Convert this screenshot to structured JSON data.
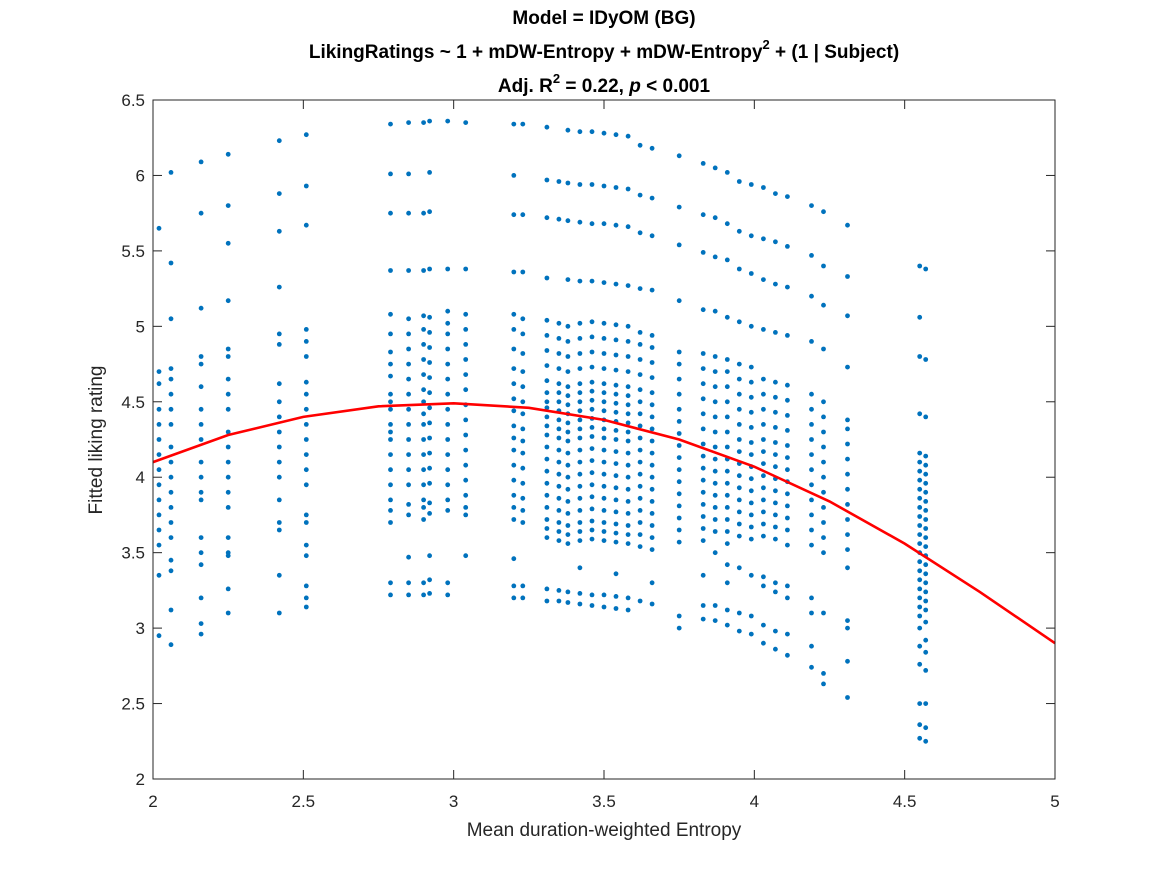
{
  "chart_data": {
    "type": "scatter",
    "title_lines": [
      "Model = IDyOM (BG)",
      "LikingRatings ~ 1 + mDW-Entropy + mDW-Entropy",
      "Adj. R",
      "2",
      " = 0.22, ",
      "p",
      " < 0.001"
    ],
    "title_line2_sup": "2",
    "title_line2_tail": " + (1 | Subject)",
    "xlabel": "Mean duration-weighted Entropy",
    "ylabel": "Fitted liking rating",
    "xlim": [
      2,
      5
    ],
    "ylim": [
      2,
      6.5
    ],
    "x_ticks": [
      2,
      2.5,
      3,
      3.5,
      4,
      4.5,
      5
    ],
    "x_tick_labels": [
      "2",
      "2.5",
      "3",
      "3.5",
      "4",
      "4.5",
      "5"
    ],
    "y_ticks": [
      2,
      2.5,
      3,
      3.5,
      4,
      4.5,
      5,
      5.5,
      6,
      6.5
    ],
    "y_tick_labels": [
      "2",
      "2.5",
      "3",
      "3.5",
      "4",
      "4.5",
      "5",
      "5.5",
      "6",
      "6.5"
    ],
    "grid": false,
    "scatter_color": "#0072BD",
    "fit_color": "#FF0000",
    "fit_curve": {
      "x": [
        2.0,
        2.25,
        2.5,
        2.75,
        3.0,
        3.25,
        3.5,
        3.75,
        4.0,
        4.25,
        4.5,
        4.75,
        5.0
      ],
      "y": [
        4.1,
        4.28,
        4.4,
        4.47,
        4.49,
        4.46,
        4.38,
        4.25,
        4.07,
        3.84,
        3.56,
        3.24,
        2.9
      ]
    },
    "columns": [
      {
        "x": 2.02,
        "y": [
          5.65,
          4.7,
          4.62,
          4.45,
          4.35,
          4.25,
          4.15,
          4.05,
          3.95,
          3.85,
          3.75,
          3.65,
          3.55,
          3.35,
          2.95
        ]
      },
      {
        "x": 2.06,
        "y": [
          6.02,
          5.42,
          5.05,
          4.72,
          4.65,
          4.55,
          4.45,
          4.35,
          4.2,
          4.1,
          4.0,
          3.9,
          3.8,
          3.7,
          3.6,
          3.45,
          3.38,
          3.12,
          2.89
        ]
      },
      {
        "x": 2.16,
        "y": [
          6.09,
          5.75,
          5.12,
          4.8,
          4.75,
          4.6,
          4.45,
          4.35,
          4.25,
          4.1,
          4.0,
          3.9,
          3.85,
          3.6,
          3.5,
          3.42,
          3.2,
          3.03,
          2.96
        ]
      },
      {
        "x": 2.25,
        "y": [
          6.14,
          5.8,
          5.55,
          5.17,
          4.85,
          4.8,
          4.65,
          4.55,
          4.45,
          4.3,
          4.2,
          4.1,
          4.0,
          3.9,
          3.8,
          3.6,
          3.5,
          3.48,
          3.26,
          3.1
        ]
      },
      {
        "x": 2.42,
        "y": [
          6.23,
          5.88,
          5.63,
          5.26,
          4.95,
          4.88,
          4.62,
          4.5,
          4.4,
          4.3,
          4.2,
          4.1,
          4.0,
          3.85,
          3.7,
          3.65,
          3.35,
          3.1
        ]
      },
      {
        "x": 2.51,
        "y": [
          6.27,
          5.93,
          5.67,
          4.98,
          4.9,
          4.8,
          4.63,
          4.55,
          4.45,
          4.35,
          4.25,
          4.15,
          4.05,
          3.95,
          3.75,
          3.7,
          3.55,
          3.48,
          3.28,
          3.2,
          3.14
        ]
      },
      {
        "x": 2.79,
        "y": [
          6.34,
          6.01,
          5.75,
          5.37,
          5.08,
          4.95,
          4.83,
          4.75,
          4.67,
          4.55,
          4.5,
          4.45,
          4.35,
          4.3,
          4.25,
          4.15,
          4.05,
          3.95,
          3.85,
          3.78,
          3.7,
          3.3,
          3.22
        ]
      },
      {
        "x": 2.85,
        "y": [
          6.35,
          6.01,
          5.75,
          5.37,
          5.05,
          4.95,
          4.85,
          4.75,
          4.65,
          4.55,
          4.45,
          4.35,
          4.25,
          4.15,
          4.05,
          3.95,
          3.82,
          3.75,
          3.47,
          3.3,
          3.22
        ]
      },
      {
        "x": 2.9,
        "y": [
          6.35,
          5.75,
          5.37,
          5.07,
          4.98,
          4.88,
          4.78,
          4.68,
          4.58,
          4.5,
          4.42,
          4.35,
          4.25,
          4.15,
          4.05,
          3.95,
          3.85,
          3.8,
          3.72,
          3.3,
          3.22
        ]
      },
      {
        "x": 2.92,
        "y": [
          6.36,
          6.02,
          5.76,
          5.38,
          5.06,
          4.96,
          4.86,
          4.76,
          4.66,
          4.56,
          4.46,
          4.36,
          4.26,
          4.16,
          4.06,
          3.96,
          3.83,
          3.76,
          3.48,
          3.32,
          3.23
        ]
      },
      {
        "x": 2.98,
        "y": [
          6.36,
          5.38,
          5.1,
          5.02,
          4.95,
          4.85,
          4.75,
          4.65,
          4.55,
          4.45,
          4.35,
          4.25,
          4.15,
          4.05,
          3.95,
          3.85,
          3.78,
          3.3,
          3.22
        ]
      },
      {
        "x": 3.04,
        "y": [
          6.35,
          5.38,
          5.08,
          4.98,
          4.88,
          4.78,
          4.68,
          4.58,
          4.48,
          4.38,
          4.28,
          4.18,
          4.08,
          3.98,
          3.88,
          3.8,
          3.75,
          3.48
        ]
      },
      {
        "x": 3.2,
        "y": [
          6.34,
          6.0,
          5.74,
          5.36,
          5.08,
          4.98,
          4.85,
          4.72,
          4.62,
          4.52,
          4.44,
          4.34,
          4.26,
          4.18,
          4.08,
          3.98,
          3.88,
          3.8,
          3.72,
          3.46,
          3.28,
          3.2
        ]
      },
      {
        "x": 3.23,
        "y": [
          6.34,
          5.74,
          5.36,
          5.05,
          4.95,
          4.82,
          4.7,
          4.6,
          4.5,
          4.42,
          4.32,
          4.24,
          4.16,
          4.06,
          3.96,
          3.86,
          3.78,
          3.7,
          3.28,
          3.2
        ]
      },
      {
        "x": 3.31,
        "y": [
          6.32,
          5.97,
          5.72,
          5.32,
          5.04,
          4.94,
          4.84,
          4.74,
          4.64,
          4.56,
          4.5,
          4.46,
          4.4,
          4.34,
          4.28,
          4.2,
          4.12,
          4.04,
          3.96,
          3.88,
          3.8,
          3.72,
          3.66,
          3.6,
          3.26,
          3.18
        ]
      },
      {
        "x": 3.35,
        "y": [
          5.96,
          5.71,
          5.02,
          4.92,
          4.82,
          4.72,
          4.62,
          4.56,
          4.5,
          4.44,
          4.38,
          4.32,
          4.26,
          4.18,
          4.1,
          4.02,
          3.94,
          3.86,
          3.78,
          3.7,
          3.64,
          3.58,
          3.25,
          3.18
        ]
      },
      {
        "x": 3.38,
        "y": [
          6.3,
          5.95,
          5.7,
          5.31,
          5.0,
          4.9,
          4.8,
          4.7,
          4.6,
          4.54,
          4.48,
          4.42,
          4.36,
          4.3,
          4.24,
          4.16,
          4.08,
          4.0,
          3.92,
          3.84,
          3.76,
          3.68,
          3.62,
          3.56,
          3.24,
          3.17
        ]
      },
      {
        "x": 3.42,
        "y": [
          6.29,
          5.94,
          5.69,
          5.3,
          5.02,
          4.92,
          4.82,
          4.72,
          4.62,
          4.56,
          4.5,
          4.44,
          4.38,
          4.32,
          4.26,
          4.18,
          4.1,
          4.02,
          3.94,
          3.86,
          3.78,
          3.7,
          3.64,
          3.58,
          3.4,
          3.23,
          3.16
        ]
      },
      {
        "x": 3.46,
        "y": [
          6.29,
          5.94,
          5.68,
          5.3,
          5.03,
          4.93,
          4.83,
          4.73,
          4.63,
          4.57,
          4.51,
          4.45,
          4.39,
          4.33,
          4.27,
          4.19,
          4.11,
          4.03,
          3.95,
          3.87,
          3.79,
          3.71,
          3.65,
          3.59,
          3.22,
          3.15
        ]
      },
      {
        "x": 3.5,
        "y": [
          6.28,
          5.93,
          5.68,
          5.29,
          5.02,
          4.92,
          4.82,
          4.72,
          4.62,
          4.56,
          4.5,
          4.44,
          4.38,
          4.32,
          4.26,
          4.18,
          4.1,
          4.02,
          3.94,
          3.86,
          3.78,
          3.7,
          3.64,
          3.58,
          3.22,
          3.14
        ]
      },
      {
        "x": 3.54,
        "y": [
          6.27,
          5.92,
          5.67,
          5.28,
          5.01,
          4.91,
          4.81,
          4.71,
          4.61,
          4.55,
          4.49,
          4.43,
          4.37,
          4.31,
          4.25,
          4.17,
          4.09,
          4.01,
          3.93,
          3.85,
          3.77,
          3.69,
          3.63,
          3.57,
          3.36,
          3.21,
          3.13
        ]
      },
      {
        "x": 3.58,
        "y": [
          6.26,
          5.91,
          5.66,
          5.27,
          5.0,
          4.9,
          4.8,
          4.7,
          4.6,
          4.54,
          4.48,
          4.42,
          4.36,
          4.3,
          4.24,
          4.16,
          4.08,
          4.0,
          3.92,
          3.84,
          3.76,
          3.68,
          3.62,
          3.56,
          3.2,
          3.12
        ]
      },
      {
        "x": 3.62,
        "y": [
          6.2,
          5.87,
          5.62,
          5.25,
          4.96,
          4.88,
          4.78,
          4.68,
          4.58,
          4.5,
          4.42,
          4.34,
          4.26,
          4.18,
          4.1,
          4.02,
          3.94,
          3.86,
          3.78,
          3.7,
          3.62,
          3.54,
          3.18
        ]
      },
      {
        "x": 3.66,
        "y": [
          6.18,
          5.85,
          5.6,
          5.24,
          4.94,
          4.86,
          4.76,
          4.66,
          4.56,
          4.48,
          4.4,
          4.32,
          4.24,
          4.16,
          4.08,
          4.0,
          3.92,
          3.84,
          3.76,
          3.68,
          3.6,
          3.52,
          3.3,
          3.16
        ]
      },
      {
        "x": 3.75,
        "y": [
          6.13,
          5.79,
          5.54,
          5.17,
          4.83,
          4.75,
          4.65,
          4.55,
          4.45,
          4.37,
          4.29,
          4.21,
          4.13,
          4.05,
          3.97,
          3.89,
          3.81,
          3.73,
          3.65,
          3.57,
          3.08,
          3.0
        ]
      },
      {
        "x": 3.83,
        "y": [
          6.08,
          5.74,
          5.49,
          5.11,
          4.82,
          4.72,
          4.62,
          4.52,
          4.42,
          4.32,
          4.22,
          4.14,
          4.06,
          3.98,
          3.9,
          3.82,
          3.74,
          3.66,
          3.58,
          3.35,
          3.15,
          3.06
        ]
      },
      {
        "x": 3.87,
        "y": [
          6.05,
          5.72,
          5.46,
          5.1,
          4.8,
          4.7,
          4.6,
          4.5,
          4.4,
          4.3,
          4.2,
          4.12,
          4.04,
          3.96,
          3.88,
          3.8,
          3.72,
          3.64,
          3.5,
          3.15,
          3.05
        ]
      },
      {
        "x": 3.91,
        "y": [
          6.02,
          5.68,
          5.44,
          5.06,
          4.78,
          4.7,
          4.6,
          4.5,
          4.4,
          4.3,
          4.2,
          4.12,
          4.04,
          3.96,
          3.88,
          3.8,
          3.72,
          3.64,
          3.56,
          3.42,
          3.3,
          3.12,
          3.02
        ]
      },
      {
        "x": 3.95,
        "y": [
          5.96,
          5.63,
          5.38,
          5.03,
          4.75,
          4.65,
          4.55,
          4.45,
          4.35,
          4.25,
          4.17,
          4.09,
          4.01,
          3.93,
          3.85,
          3.77,
          3.69,
          3.61,
          3.4,
          3.1,
          2.98
        ]
      },
      {
        "x": 3.99,
        "y": [
          5.94,
          5.6,
          5.35,
          5.0,
          4.73,
          4.63,
          4.53,
          4.43,
          4.33,
          4.23,
          4.15,
          4.07,
          3.99,
          3.91,
          3.83,
          3.75,
          3.67,
          3.59,
          3.35,
          3.08,
          2.96
        ]
      },
      {
        "x": 4.03,
        "y": [
          5.92,
          5.58,
          5.31,
          4.98,
          4.65,
          4.55,
          4.45,
          4.35,
          4.25,
          4.17,
          4.09,
          4.01,
          3.93,
          3.85,
          3.77,
          3.69,
          3.61,
          3.34,
          3.28,
          3.02,
          2.9
        ]
      },
      {
        "x": 4.07,
        "y": [
          5.88,
          5.56,
          5.28,
          4.96,
          4.63,
          4.53,
          4.43,
          4.33,
          4.23,
          4.15,
          4.07,
          3.99,
          3.91,
          3.83,
          3.75,
          3.67,
          3.59,
          3.3,
          3.24,
          2.98,
          2.86
        ]
      },
      {
        "x": 4.11,
        "y": [
          5.86,
          5.53,
          5.26,
          4.94,
          4.61,
          4.51,
          4.41,
          4.31,
          4.21,
          4.13,
          4.05,
          3.97,
          3.89,
          3.81,
          3.73,
          3.65,
          3.55,
          3.28,
          3.2,
          2.96,
          2.82
        ]
      },
      {
        "x": 4.19,
        "y": [
          5.8,
          5.47,
          5.2,
          4.9,
          4.55,
          4.45,
          4.35,
          4.25,
          4.15,
          4.05,
          3.95,
          3.85,
          3.75,
          3.65,
          3.55,
          3.2,
          3.1,
          2.88,
          2.74
        ]
      },
      {
        "x": 4.23,
        "y": [
          5.76,
          5.4,
          5.14,
          4.85,
          4.5,
          4.4,
          4.3,
          4.2,
          4.1,
          4.0,
          3.9,
          3.8,
          3.7,
          3.6,
          3.5,
          3.1,
          2.7,
          2.63
        ]
      },
      {
        "x": 4.31,
        "y": [
          5.67,
          5.33,
          5.07,
          4.73,
          4.38,
          4.32,
          4.22,
          4.12,
          4.02,
          3.92,
          3.82,
          3.72,
          3.62,
          3.52,
          3.4,
          3.05,
          3.0,
          2.78,
          2.54
        ]
      },
      {
        "x": 4.55,
        "y": [
          5.4,
          5.06,
          4.8,
          4.42,
          4.16,
          4.1,
          4.04,
          3.98,
          3.92,
          3.86,
          3.8,
          3.74,
          3.68,
          3.62,
          3.56,
          3.5,
          3.44,
          3.38,
          3.32,
          3.26,
          3.2,
          3.14,
          3.08,
          3.0,
          2.88,
          2.76,
          2.5,
          2.36,
          2.27
        ]
      },
      {
        "x": 4.57,
        "y": [
          5.38,
          4.78,
          4.4,
          4.14,
          4.08,
          4.02,
          3.96,
          3.9,
          3.84,
          3.78,
          3.72,
          3.66,
          3.6,
          3.54,
          3.48,
          3.42,
          3.36,
          3.3,
          3.24,
          3.18,
          3.12,
          3.04,
          2.92,
          2.84,
          2.72,
          2.5,
          2.34,
          2.25
        ]
      }
    ]
  }
}
